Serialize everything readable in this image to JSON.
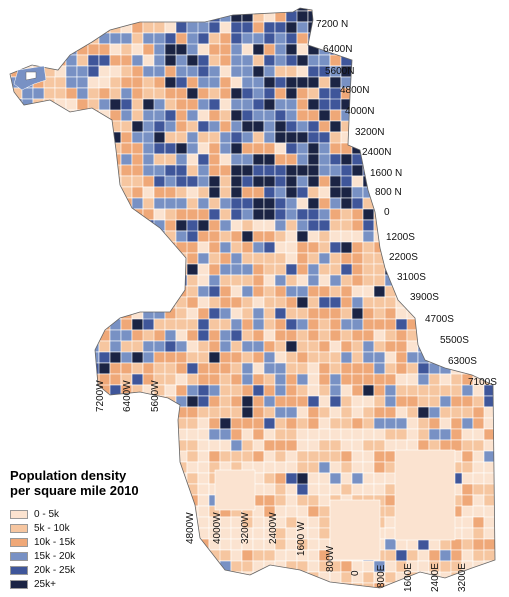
{
  "legend": {
    "title_line1": "Population density",
    "title_line2": "per square mile 2010",
    "items": [
      {
        "label": "0 - 5k",
        "color": "#fbe3d0"
      },
      {
        "label": "5k - 10k",
        "color": "#f6c6a0"
      },
      {
        "label": "10k - 15k",
        "color": "#efa878"
      },
      {
        "label": "15k - 20k",
        "color": "#7891c4"
      },
      {
        "label": "20k - 25k",
        "color": "#3f569a"
      },
      {
        "label": "25k+",
        "color": "#1b2444"
      }
    ]
  },
  "street_labels_ns": [
    "7200 N",
    "6400N",
    "5600N",
    "4800N",
    "4000N",
    "3200N",
    "2400N",
    "1600 N",
    "800 N",
    "0",
    "1200S",
    "2200S",
    "3100S",
    "3900S",
    "4700S",
    "5500S",
    "6300S",
    "7100S"
  ],
  "street_labels_ew_upper": [
    "7200W",
    "6400W",
    "5600W"
  ],
  "street_labels_ew_lower": [
    "4800W",
    "4000W",
    "3200W",
    "2400W",
    "1600 W",
    "800W",
    "0",
    "800E",
    "1600E",
    "2400E",
    "3200E"
  ]
}
